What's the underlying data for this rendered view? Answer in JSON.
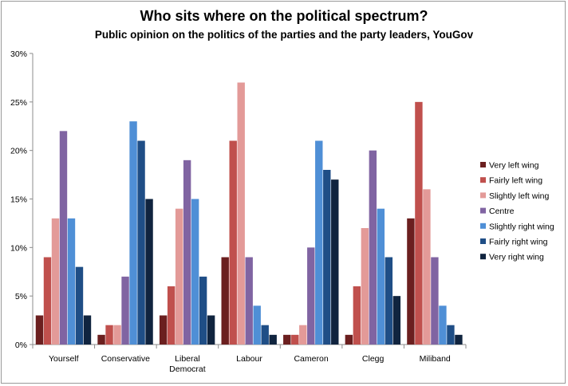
{
  "chart_data": {
    "type": "bar",
    "title": "Who sits where on the political spectrum?",
    "subtitle": "Public opinion on the politics of the parties and the party leaders, YouGov",
    "xlabel": "",
    "ylabel": "",
    "ylim": [
      0,
      30
    ],
    "yticks": [
      "0%",
      "5%",
      "10%",
      "15%",
      "20%",
      "25%",
      "30%"
    ],
    "ytick_values": [
      0,
      5,
      10,
      15,
      20,
      25,
      30
    ],
    "categories": [
      [
        "Yourself"
      ],
      [
        "Conservative"
      ],
      [
        "Liberal",
        "Democrat"
      ],
      [
        "Labour"
      ],
      [
        "Cameron"
      ],
      [
        "Clegg"
      ],
      [
        "Miliband"
      ]
    ],
    "grid": false,
    "legend_position": "right",
    "series": [
      {
        "name": "Very left wing",
        "color": "#6b1f1f",
        "values": [
          3,
          1,
          3,
          9,
          1,
          1,
          13
        ]
      },
      {
        "name": "Fairly left wing",
        "color": "#c0504d",
        "values": [
          9,
          2,
          6,
          21,
          1,
          6,
          25
        ]
      },
      {
        "name": "Slightly left wing",
        "color": "#e39a98",
        "values": [
          13,
          2,
          14,
          27,
          2,
          12,
          16
        ]
      },
      {
        "name": "Centre",
        "color": "#8064a2",
        "values": [
          22,
          7,
          19,
          9,
          10,
          20,
          9
        ]
      },
      {
        "name": "Slightly right wing",
        "color": "#4f8fd6",
        "values": [
          13,
          23,
          15,
          4,
          21,
          14,
          4
        ]
      },
      {
        "name": "Fairly right wing",
        "color": "#1f4e86",
        "values": [
          8,
          21,
          7,
          2,
          18,
          9,
          2
        ]
      },
      {
        "name": "Very right wing",
        "color": "#10243f",
        "values": [
          3,
          15,
          3,
          1,
          17,
          5,
          1
        ]
      }
    ]
  }
}
